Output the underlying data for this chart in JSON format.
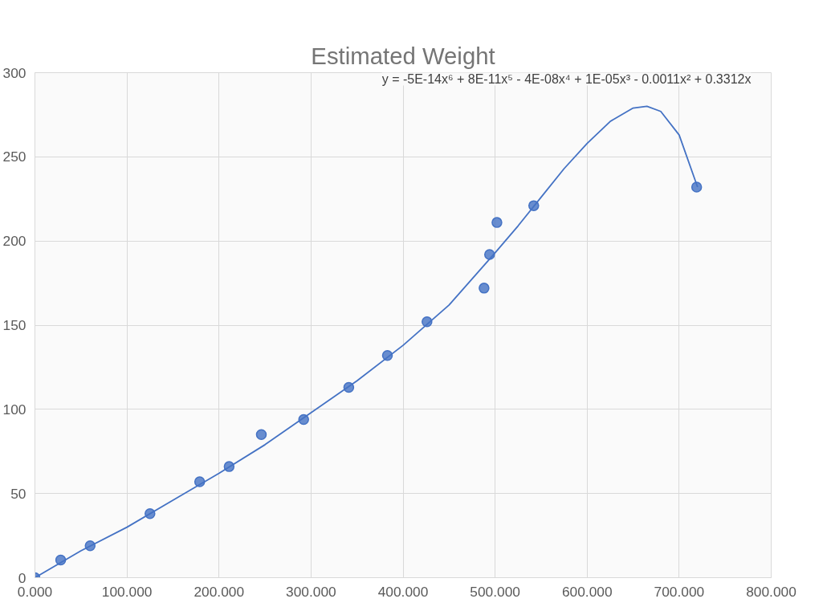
{
  "chart_data": {
    "type": "scatter",
    "title": "Estimated Weight",
    "annotations": [
      "y = -5E-14x⁶ + 8E-11x⁵ - 4E-08x⁴ + 1E-05x³ - 0.0011x² + 0.3312x"
    ],
    "series": [
      {
        "color": "#4472c4",
        "marker": "circle",
        "x": [
          0,
          28,
          60,
          125,
          179,
          211,
          246,
          292,
          341,
          383,
          426,
          488,
          494,
          502,
          542,
          719
        ],
        "values": [
          0,
          10.5,
          19,
          38,
          57,
          66,
          85,
          94,
          113,
          132,
          152,
          172,
          192,
          211,
          221,
          232
        ]
      },
      {
        "type": "line",
        "color": "#4472c4",
        "line_style": "solid",
        "x": [
          0,
          50,
          100,
          150,
          200,
          250,
          300,
          350,
          400,
          450,
          500,
          525,
          550,
          575,
          600,
          625,
          650,
          665,
          680,
          700,
          720
        ],
        "values": [
          0,
          16,
          30,
          46,
          62,
          79,
          98,
          117,
          138,
          162,
          193,
          209,
          226,
          243,
          258,
          271,
          279,
          280,
          277,
          263,
          232
        ]
      }
    ],
    "xlim": [
      0,
      800
    ],
    "ylim": [
      0,
      300
    ],
    "xticks": [
      {
        "value": 0,
        "label": "0.000"
      },
      {
        "value": 100,
        "label": "100.000"
      },
      {
        "value": 200,
        "label": "200.000"
      },
      {
        "value": 300,
        "label": "300.000"
      },
      {
        "value": 400,
        "label": "400.000"
      },
      {
        "value": 500,
        "label": "500.000"
      },
      {
        "value": 600,
        "label": "600.000"
      },
      {
        "value": 700,
        "label": "700.000"
      },
      {
        "value": 800,
        "label": "800.000"
      }
    ],
    "yticks": [
      0,
      50,
      100,
      150,
      200,
      250,
      300
    ],
    "grid": true
  }
}
